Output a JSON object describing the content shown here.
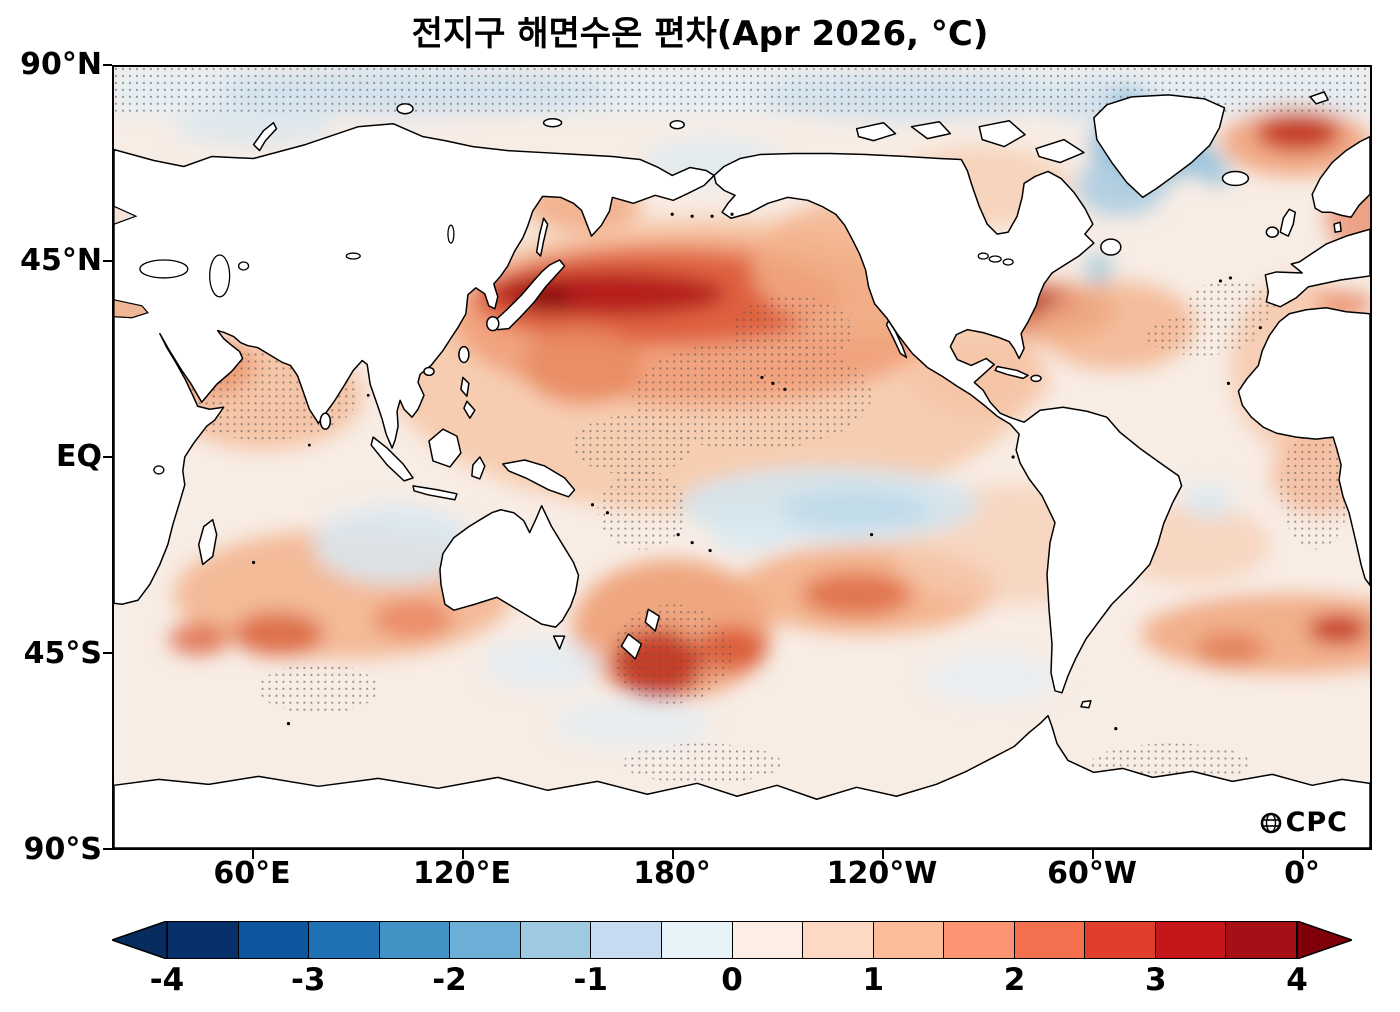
{
  "title": "전지구 해면수온 편차(Apr 2026, °C)",
  "logo_text": "CPC",
  "chart_data": {
    "type": "heatmap",
    "title": "전지구 해면수온 편차(Apr 2026, °C)",
    "title_translation": "Global sea surface temperature anomaly (Apr 2026, °C)",
    "units": "°C",
    "date": "Apr 2026",
    "projection": "Pacific-centered equirectangular world map, longitude 20°E–380°E, latitude 90°S–90°N",
    "y_ticks": [
      "90°N",
      "45°N",
      "EQ",
      "45°S",
      "90°S"
    ],
    "x_ticks": [
      "60°E",
      "120°E",
      "180°",
      "120°W",
      "60°W",
      "0°"
    ],
    "colorbar": {
      "min": -4,
      "max": 4,
      "step": 0.5,
      "tick_labels": [
        "-4",
        "-3",
        "-2",
        "-1",
        "0",
        "1",
        "2",
        "3",
        "4"
      ],
      "arrow_left": "#062c5f",
      "arrow_right": "#7f000b",
      "colors_negative": [
        "#08306b",
        "#0d57a1",
        "#2171b5",
        "#4292c6",
        "#6baed6",
        "#9ecae1",
        "#c6dbef",
        "#e7f1f8"
      ],
      "colors_positive": [
        "#fdeee5",
        "#fdd8c2",
        "#fcbc9c",
        "#fc9474",
        "#f4704f",
        "#e03f2d",
        "#c5161c",
        "#a50f15"
      ]
    },
    "features": [
      {
        "region": "Northwest Pacific / Kuroshio extension off Japan (~35–45°N)",
        "anomaly_c": "+2 to +4"
      },
      {
        "region": "Central North Pacific",
        "anomaly_c": "+1 to +2, stippled"
      },
      {
        "region": "Northwest Atlantic Gulf Stream spot",
        "anomaly_c": "+3"
      },
      {
        "region": "Barents / Norwegian Sea spot",
        "anomaly_c": "+2 to +3"
      },
      {
        "region": "Subpolar North Atlantic south/east of Greenland",
        "anomaly_c": "-1 to -2"
      },
      {
        "region": "Equatorial central Pacific",
        "anomaly_c": "-0.5 to -1"
      },
      {
        "region": "Arabian Sea / north Indian Ocean",
        "anomaly_c": "+0.5 to +1, stippled"
      },
      {
        "region": "South Indian Ocean 30–50°S",
        "anomaly_c": "+1 to +2"
      },
      {
        "region": "Tasman Sea and around New Zealand",
        "anomaly_c": "+1 to +3"
      },
      {
        "region": "Central South Pacific 30–45°S",
        "anomaly_c": "+1 to +2"
      },
      {
        "region": "South Atlantic–Indian 40–50°S band",
        "anomaly_c": "+1 to +3"
      },
      {
        "region": "Arctic marginal seas",
        "anomaly_c": "-0.5 to 0, stippled"
      },
      {
        "region": "Most remaining oceans",
        "anomaly_c": "0 to +1"
      }
    ],
    "stippling": "gray dotted overlay appears over several regions of the field"
  }
}
